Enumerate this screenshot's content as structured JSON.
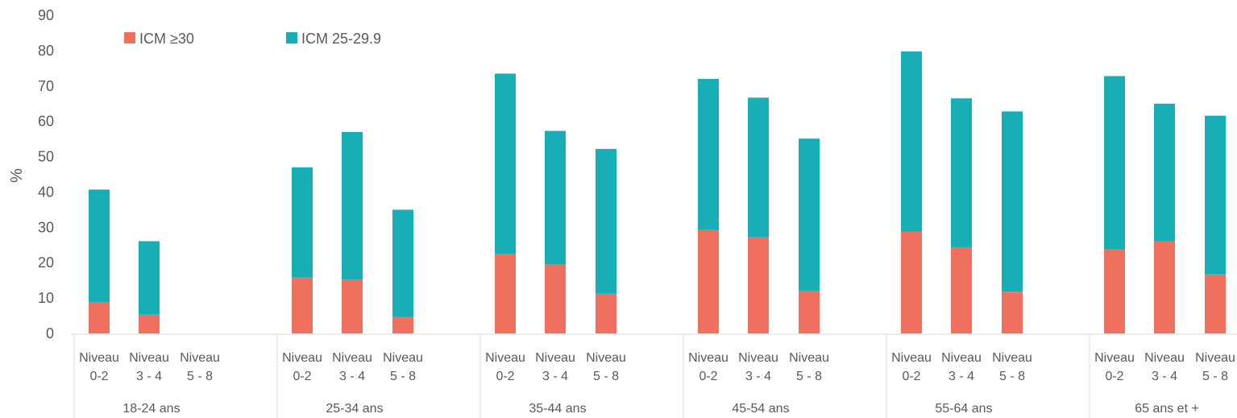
{
  "chart_data": {
    "type": "bar",
    "stacked": true,
    "ylabel": "%",
    "ylim": [
      0,
      90
    ],
    "yticks": [
      0,
      10,
      20,
      30,
      40,
      50,
      60,
      70,
      80,
      90
    ],
    "grid": false,
    "legend_position": "top-left",
    "groups": [
      {
        "label": "18-24 ans",
        "categories": [
          {
            "line1": "Niveau",
            "line2": "0-2"
          },
          {
            "line1": "Niveau",
            "line2": "3 - 4"
          },
          {
            "line1": "Niveau",
            "line2": "5 - 8"
          }
        ]
      },
      {
        "label": "25-34 ans",
        "categories": [
          {
            "line1": "Niveau",
            "line2": "0-2"
          },
          {
            "line1": "Niveau",
            "line2": "3 - 4"
          },
          {
            "line1": "Niveau",
            "line2": "5 - 8"
          }
        ]
      },
      {
        "label": "35-44 ans",
        "categories": [
          {
            "line1": "Niveau",
            "line2": "0-2"
          },
          {
            "line1": "Niveau",
            "line2": "3 - 4"
          },
          {
            "line1": "Niveau",
            "line2": "5 - 8"
          }
        ]
      },
      {
        "label": "45-54 ans",
        "categories": [
          {
            "line1": "Niveau",
            "line2": "0-2"
          },
          {
            "line1": "Niveau",
            "line2": "3 - 4"
          },
          {
            "line1": "Niveau",
            "line2": "5 - 8"
          }
        ]
      },
      {
        "label": "55-64 ans",
        "categories": [
          {
            "line1": "Niveau",
            "line2": "0-2"
          },
          {
            "line1": "Niveau",
            "line2": "3 - 4"
          },
          {
            "line1": "Niveau",
            "line2": "5 - 8"
          }
        ]
      },
      {
        "label": "65 ans et +",
        "categories": [
          {
            "line1": "Niveau",
            "line2": "0-2"
          },
          {
            "line1": "Niveau",
            "line2": "3 - 4"
          },
          {
            "line1": "Niveau",
            "line2": "5 - 8"
          }
        ]
      }
    ],
    "series": [
      {
        "name": "ICM ≥30",
        "color": "#f07060",
        "values": [
          8.8,
          5.3,
          null,
          15.8,
          15.2,
          4.6,
          22.4,
          19.5,
          11.2,
          29.3,
          27.2,
          12.1,
          28.8,
          24.3,
          11.8,
          23.8,
          26.1,
          16.7
        ]
      },
      {
        "name": "ICM 25-29.9",
        "color": "#17aeb5",
        "values": [
          31.9,
          20.8,
          null,
          31.2,
          41.8,
          30.4,
          51.1,
          37.8,
          41.0,
          42.7,
          39.5,
          43.0,
          51.0,
          42.2,
          51.0,
          49.0,
          38.9,
          44.9
        ]
      }
    ]
  }
}
